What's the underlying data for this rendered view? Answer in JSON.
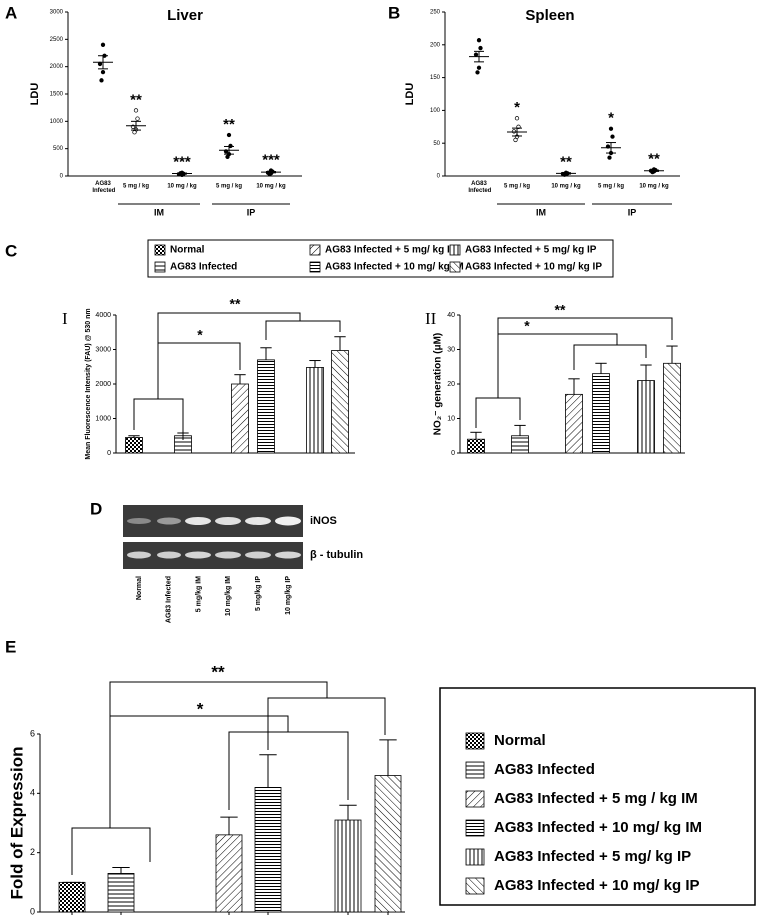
{
  "chart_data": [
    {
      "type": "dot",
      "panel": "A",
      "title": "Liver",
      "ylabel": "LDU",
      "categories": [
        "AG83 Infected",
        "5 mg / kg",
        "10 mg / kg",
        "5 mg / kg",
        "10 mg / kg"
      ],
      "groups": [
        "IM",
        "IP"
      ],
      "points": [
        [
          2400,
          2200,
          2050,
          1900,
          1750
        ],
        [
          1200,
          1050,
          900,
          850,
          800
        ],
        [
          60,
          40,
          30,
          20,
          50
        ],
        [
          750,
          550,
          450,
          400,
          350
        ],
        [
          100,
          80,
          60,
          50,
          40
        ]
      ],
      "values": [
        2080,
        920,
        45,
        470,
        70
      ],
      "errors": [
        120,
        80,
        10,
        70,
        12
      ],
      "significance": [
        null,
        "**",
        "***",
        "**",
        "***"
      ],
      "ylim": [
        0,
        3000
      ],
      "yticks": [
        0,
        500,
        1000,
        1500,
        2000,
        2500,
        3000
      ],
      "color": "#000000"
    },
    {
      "type": "dot",
      "panel": "B",
      "title": "Spleen",
      "ylabel": "LDU",
      "categories": [
        "AG83 Infected",
        "5 mg / kg",
        "10 mg / kg",
        "5 mg / kg",
        "10 mg / kg"
      ],
      "groups": [
        "IM",
        "IP"
      ],
      "points": [
        [
          207,
          195,
          185,
          165,
          158
        ],
        [
          88,
          75,
          68,
          60,
          55
        ],
        [
          5,
          4,
          3,
          3,
          2
        ],
        [
          72,
          60,
          45,
          35,
          28
        ],
        [
          10,
          9,
          8,
          7,
          6
        ]
      ],
      "values": [
        182,
        67,
        4,
        43,
        8
      ],
      "errors": [
        8,
        6,
        1,
        8,
        1
      ],
      "significance": [
        null,
        "*",
        "**",
        "*",
        "**"
      ],
      "ylim": [
        0,
        250
      ],
      "yticks": [
        0,
        50,
        100,
        150,
        200,
        250
      ],
      "color": "#000000"
    },
    {
      "type": "bar",
      "panel": "C",
      "subpanel": "I",
      "ylabel": "Mean Fluorescence Intensity (FAU) @ 530 nm",
      "series": [
        {
          "name": "Normal",
          "pattern": "checker",
          "values": [
            450
          ],
          "errors": [
            50
          ]
        },
        {
          "name": "AG83 Infected",
          "pattern": "hlines",
          "values": [
            500
          ],
          "errors": [
            80
          ]
        },
        {
          "name": "AG83 Infected + 5 mg/ kg IM",
          "pattern": "fdiag",
          "values": [
            2000
          ],
          "errors": [
            270
          ]
        },
        {
          "name": "AG83 Infected + 10 mg/ kg IM",
          "pattern": "hdense",
          "values": [
            2700
          ],
          "errors": [
            350
          ]
        },
        {
          "name": "AG83 Infected + 5 mg/ kg IP",
          "pattern": "vlines",
          "values": [
            2480
          ],
          "errors": [
            200
          ]
        },
        {
          "name": "AG83 Infected + 10 mg/ kg IP",
          "pattern": "bdiag",
          "values": [
            2970
          ],
          "errors": [
            400
          ]
        }
      ],
      "annotations": [
        "*",
        "**"
      ],
      "ylim": [
        0,
        4000
      ],
      "yticks": [
        0,
        1000,
        2000,
        3000,
        4000
      ]
    },
    {
      "type": "bar",
      "subpanel": "II",
      "ylabel": "NO₂⁻ generation (μM)",
      "series": [
        {
          "pattern": "checker",
          "values": [
            4
          ],
          "errors": [
            2
          ]
        },
        {
          "pattern": "hlines",
          "values": [
            5
          ],
          "errors": [
            3
          ]
        },
        {
          "pattern": "fdiag",
          "values": [
            17
          ],
          "errors": [
            4.5
          ]
        },
        {
          "pattern": "hdense",
          "values": [
            23
          ],
          "errors": [
            3
          ]
        },
        {
          "pattern": "vlines",
          "values": [
            21
          ],
          "errors": [
            4.5
          ]
        },
        {
          "pattern": "bdiag",
          "values": [
            26
          ],
          "errors": [
            5
          ]
        }
      ],
      "annotations": [
        "*",
        "**"
      ],
      "ylim": [
        0,
        40
      ],
      "yticks": [
        0,
        10,
        20,
        30,
        40
      ]
    },
    {
      "type": "bar",
      "panel": "E",
      "ylabel": "Fold of Expression",
      "series": [
        {
          "name": "Normal",
          "pattern": "checker",
          "values": [
            1
          ],
          "errors": [
            0
          ]
        },
        {
          "name": "AG83 Infected",
          "pattern": "hlines",
          "values": [
            1.3
          ],
          "errors": [
            0.2
          ]
        },
        {
          "name": "AG83 Infected + 5 mg / kg IM",
          "pattern": "fdiag",
          "values": [
            2.6
          ],
          "errors": [
            0.6
          ]
        },
        {
          "name": "AG83 Infected + 10 mg/ kg IM",
          "pattern": "hdense",
          "values": [
            4.2
          ],
          "errors": [
            1.1
          ]
        },
        {
          "name": "AG83 Infected + 5 mg/ kg IP",
          "pattern": "vlines",
          "values": [
            3.1
          ],
          "errors": [
            0.5
          ]
        },
        {
          "name": "AG83 Infected + 10 mg/ kg IP",
          "pattern": "bdiag",
          "values": [
            4.6
          ],
          "errors": [
            1.2
          ]
        }
      ],
      "annotations": [
        "*",
        "**"
      ],
      "ylim": [
        0,
        6
      ],
      "yticks": [
        0,
        2,
        4,
        6
      ]
    }
  ],
  "gel": {
    "panel": "D",
    "bands": [
      "iNOS",
      "β - tubulin"
    ],
    "lanes": [
      "Normal",
      "AG83 Infected",
      "5 mg/kg IM",
      "10 mg/kg IM",
      "5 mg/kg IP",
      "10 mg/kg IP"
    ]
  }
}
